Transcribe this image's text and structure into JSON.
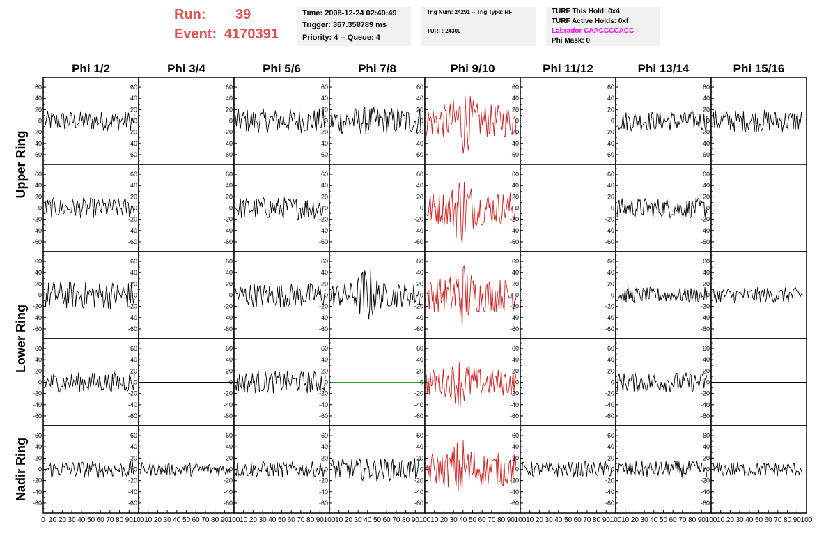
{
  "header": {
    "run_label": "Run:",
    "run_value": "39",
    "event_label": "Event:",
    "event_value": "4170391",
    "time": "Time: 2008-12-24 02:40:49",
    "trigger": "Trigger: 367.358789 ms",
    "priority": "Priority: 4 -- Queue: 4",
    "trig_num": "Trig Num: 24291 -- Trig Type: RF",
    "turf": "TURF: 24300",
    "turf_this_hold": "TURF This Hold: 0x4",
    "turf_active_holds": "TURF Active Holds: 0xf",
    "labrador": "Labrador CAACCCCACC",
    "phi_mask": "Phi Mask: 0"
  },
  "colors": {
    "run_text": "#e05050",
    "labrador_text": "#ff00ff",
    "trace_default": "#000000",
    "trace_trigger": "#cc2222",
    "trace_blue": "#1a1aa0",
    "trace_green": "#22a022",
    "info_bg": "#f2f2f2"
  },
  "chart_data": {
    "type": "line",
    "columns": [
      "Phi 1/2",
      "Phi 3/4",
      "Phi 5/6",
      "Phi 7/8",
      "Phi 9/10",
      "Phi 11/12",
      "Phi 13/14",
      "Phi 15/16"
    ],
    "row_groups": [
      "Upper Ring",
      "Lower Ring",
      "Nadir Ring"
    ],
    "rows": 5,
    "ylim": [
      -70,
      70
    ],
    "yticks": [
      -60,
      -40,
      -20,
      0,
      20,
      40,
      60
    ],
    "xlim": [
      0,
      100
    ],
    "xticks": [
      0,
      10,
      20,
      30,
      40,
      50,
      60,
      70,
      80,
      90,
      100
    ],
    "samples_per_trace": 90,
    "panels": [
      [
        "noise",
        "flat",
        "noise",
        "noise",
        "trigger",
        "flat-blue",
        "noise",
        "noise"
      ],
      [
        "noise",
        "flat",
        "noise",
        "flat",
        "trigger",
        "empty",
        "noise",
        "flat"
      ],
      [
        "noise",
        "flat",
        "noise",
        "noise",
        "trigger",
        "flat-green",
        "noise",
        "noise"
      ],
      [
        "noise",
        "flat",
        "noise",
        "flat-green",
        "trigger",
        "empty",
        "noise",
        "flat"
      ],
      [
        "noise",
        "noise",
        "noise",
        "noise",
        "trigger",
        "noise",
        "noise",
        "noise"
      ]
    ],
    "amplitudes": [
      [
        18,
        0,
        22,
        25,
        30,
        0,
        18,
        20
      ],
      [
        18,
        0,
        20,
        0,
        30,
        0,
        18,
        0
      ],
      [
        25,
        0,
        22,
        22,
        30,
        0,
        14,
        14
      ],
      [
        18,
        0,
        20,
        0,
        25,
        0,
        18,
        0
      ],
      [
        15,
        12,
        14,
        20,
        30,
        14,
        15,
        13
      ]
    ],
    "spikes": [
      [
        0,
        0,
        0,
        0,
        65,
        0,
        0,
        0
      ],
      [
        0,
        0,
        0,
        0,
        70,
        0,
        0,
        0
      ],
      [
        0,
        0,
        0,
        55,
        65,
        0,
        0,
        0
      ],
      [
        0,
        0,
        0,
        0,
        50,
        0,
        0,
        0
      ],
      [
        0,
        0,
        0,
        0,
        60,
        0,
        0,
        0
      ]
    ]
  }
}
